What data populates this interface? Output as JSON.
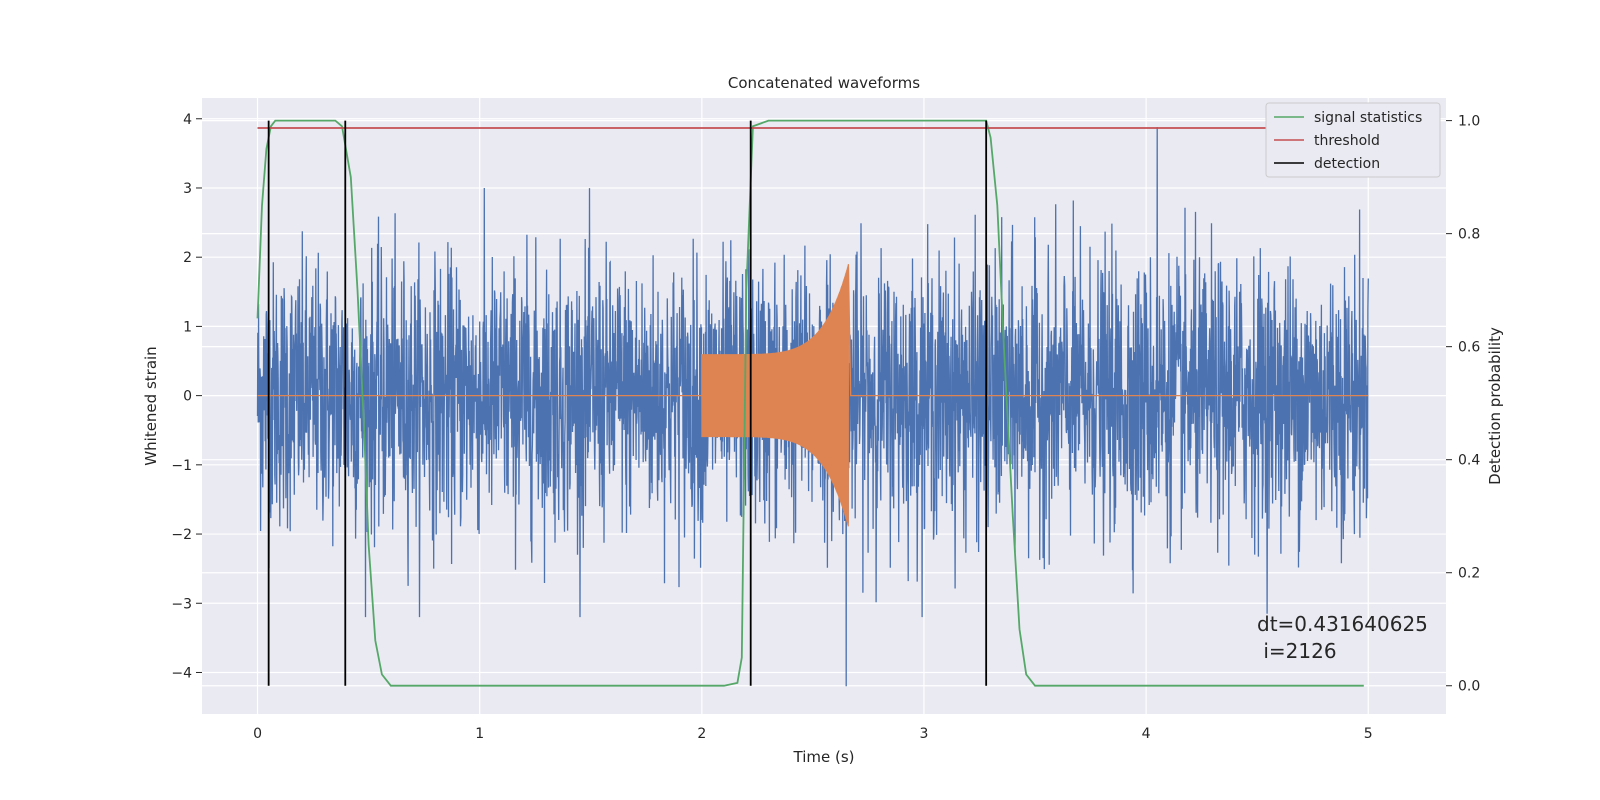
{
  "chart_data": {
    "type": "line",
    "title": "Concatenated waveforms",
    "xlabel": "Time (s)",
    "ylabel_left": "Whitened strain",
    "ylabel_right": "Detection probability",
    "xlim": [
      -0.25,
      5.35
    ],
    "ylim_left": [
      -4.6,
      4.3
    ],
    "ylim_right": [
      -0.05,
      1.04
    ],
    "x_ticks": [
      0,
      1,
      2,
      3,
      4,
      5
    ],
    "x_tick_labels": [
      "0",
      "1",
      "2",
      "3",
      "4",
      "5"
    ],
    "y_left_ticks": [
      -4,
      -3,
      -2,
      -1,
      0,
      1,
      2,
      3,
      4
    ],
    "y_left_tick_labels": [
      "−4",
      "−3",
      "−2",
      "−1",
      "0",
      "1",
      "2",
      "3",
      "4"
    ],
    "y_right_ticks": [
      0.0,
      0.2,
      0.4,
      0.6,
      0.8,
      1.0
    ],
    "y_right_tick_labels": [
      "0.0",
      "0.2",
      "0.4",
      "0.6",
      "0.8",
      "1.0"
    ],
    "grid": true,
    "legend_position": "top-right",
    "series": [
      {
        "name": "signal statistics",
        "axis": "right",
        "color": "#55a868",
        "x": [
          0,
          0.02,
          0.04,
          0.06,
          0.08,
          0.1,
          0.15,
          0.25,
          0.35,
          0.38,
          0.42,
          0.45,
          0.48,
          0.5,
          0.53,
          0.56,
          0.6,
          0.7,
          1.0,
          1.5,
          2.0,
          2.1,
          2.16,
          2.18,
          2.2,
          2.23,
          2.3,
          2.6,
          3.0,
          3.28,
          3.3,
          3.33,
          3.36,
          3.4,
          3.43,
          3.46,
          3.5,
          3.6,
          4.0,
          4.5,
          4.98
        ],
        "y": [
          0.65,
          0.85,
          0.95,
          0.99,
          1.0,
          1.0,
          1.0,
          1.0,
          1.0,
          0.99,
          0.9,
          0.7,
          0.45,
          0.25,
          0.08,
          0.02,
          0.0,
          0.0,
          0.0,
          0.0,
          0.0,
          0.0,
          0.005,
          0.05,
          0.7,
          0.99,
          1.0,
          1.0,
          1.0,
          1.0,
          0.97,
          0.85,
          0.6,
          0.3,
          0.1,
          0.02,
          0.0,
          0.0,
          0.0,
          0.0,
          0.0
        ]
      },
      {
        "name": "threshold",
        "axis": "right",
        "color": "#c44e52",
        "x": [
          0,
          5
        ],
        "y": [
          0.987,
          0.987
        ]
      },
      {
        "name": "detection",
        "axis": "right",
        "color": "#000000",
        "type": "vlines",
        "x": [
          0.05,
          0.395,
          2.22,
          3.28
        ],
        "ymin": 0.0,
        "ymax": 1.0
      }
    ],
    "noise": {
      "axis": "left",
      "color": "#4c72b0",
      "x_range": [
        0,
        5
      ],
      "sigma": 0.95,
      "max": 3.88,
      "min": -4.2
    },
    "injection": {
      "axis": "left",
      "color": "#dd8452",
      "x_start": 2.0,
      "x_end": 2.66,
      "amplitude_start": 0.6,
      "amplitude_end": 1.9
    },
    "annotation": "dt=0.431640625\n i=2126"
  }
}
